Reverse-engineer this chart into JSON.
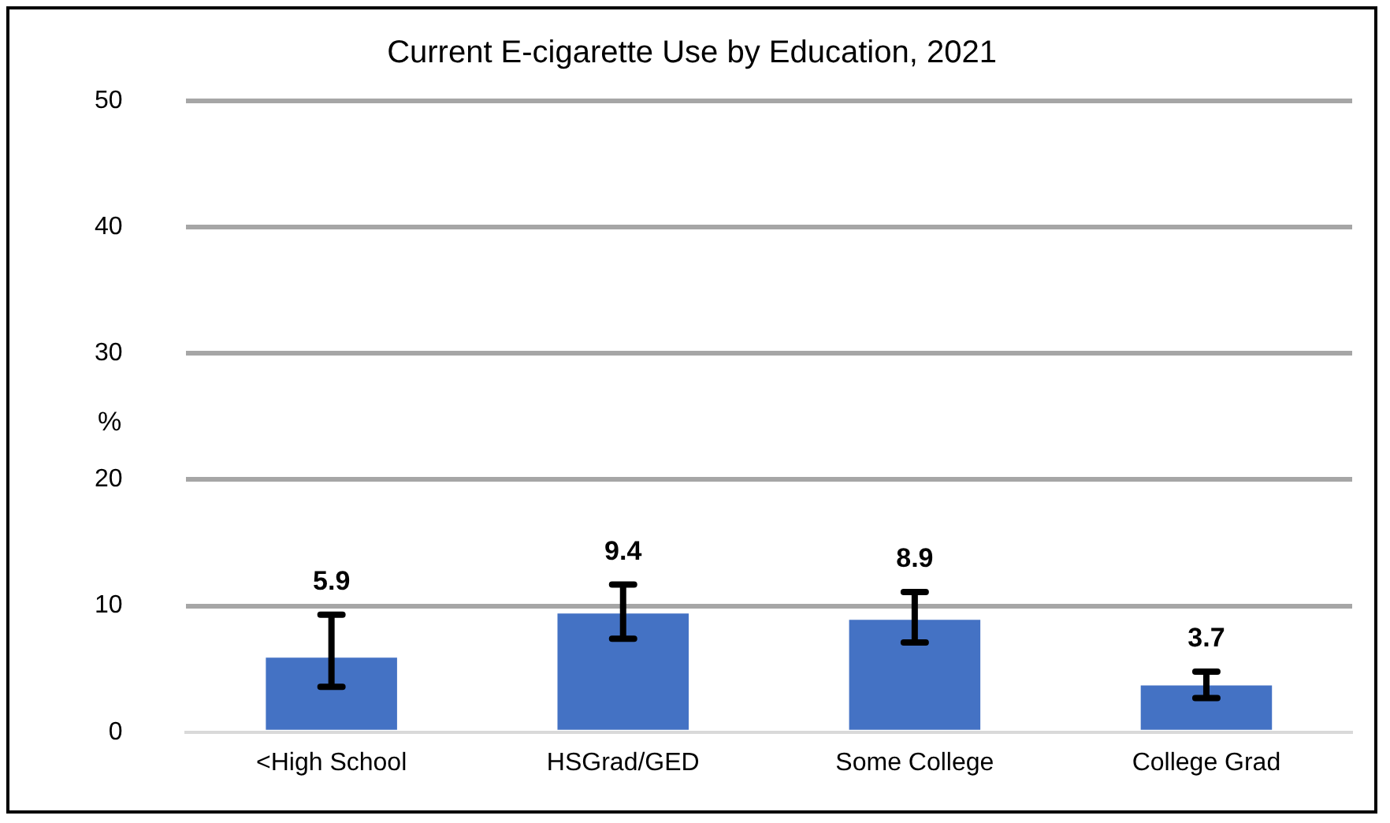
{
  "chart_data": {
    "type": "bar",
    "title": "Current E-cigarette Use by Education, 2021",
    "ylabel": "%",
    "categories": [
      "<High School",
      "HSGrad/GED",
      "Some College",
      "College Grad"
    ],
    "values": [
      5.9,
      9.4,
      8.9,
      3.7
    ],
    "color": "#4472c4",
    "errors": [
      [
        3.6,
        9.3
      ],
      [
        7.4,
        11.7
      ],
      [
        7.1,
        11.1
      ],
      [
        2.7,
        4.8
      ]
    ],
    "ylim": [
      0,
      50
    ],
    "yticks": [
      0,
      10,
      20,
      30,
      40,
      50
    ],
    "grid": "y",
    "data_labels": true,
    "legend": false
  }
}
